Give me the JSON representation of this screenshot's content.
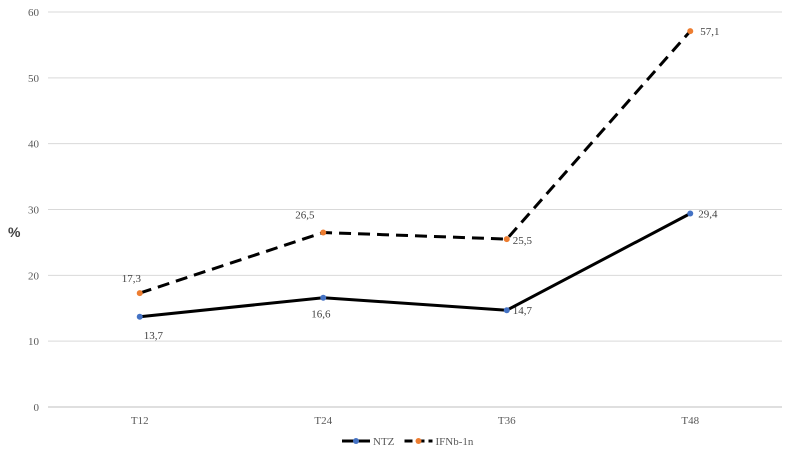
{
  "chart_data": {
    "type": "line",
    "categories": [
      "T12",
      "T24",
      "T36",
      "T48"
    ],
    "series": [
      {
        "name": "NTZ",
        "values": [
          13.7,
          16.6,
          14.7,
          29.4
        ],
        "value_labels": [
          "13,7",
          "16,6",
          "14,7",
          "29,4"
        ],
        "line_style": "solid",
        "line_color": "#000000",
        "marker_color": "#4472C4"
      },
      {
        "name": "IFNb-1n",
        "values": [
          17.3,
          26.5,
          25.5,
          57.1
        ],
        "value_labels": [
          "17,3",
          "26,5",
          "25,5",
          "57,1"
        ],
        "line_style": "dashed",
        "line_color": "#000000",
        "marker_color": "#ED7D31"
      }
    ],
    "ylabel": "%",
    "ylim": [
      0,
      60
    ],
    "yticks": [
      0,
      10,
      20,
      30,
      40,
      50,
      60
    ],
    "grid": true,
    "legend_position": "bottom"
  }
}
